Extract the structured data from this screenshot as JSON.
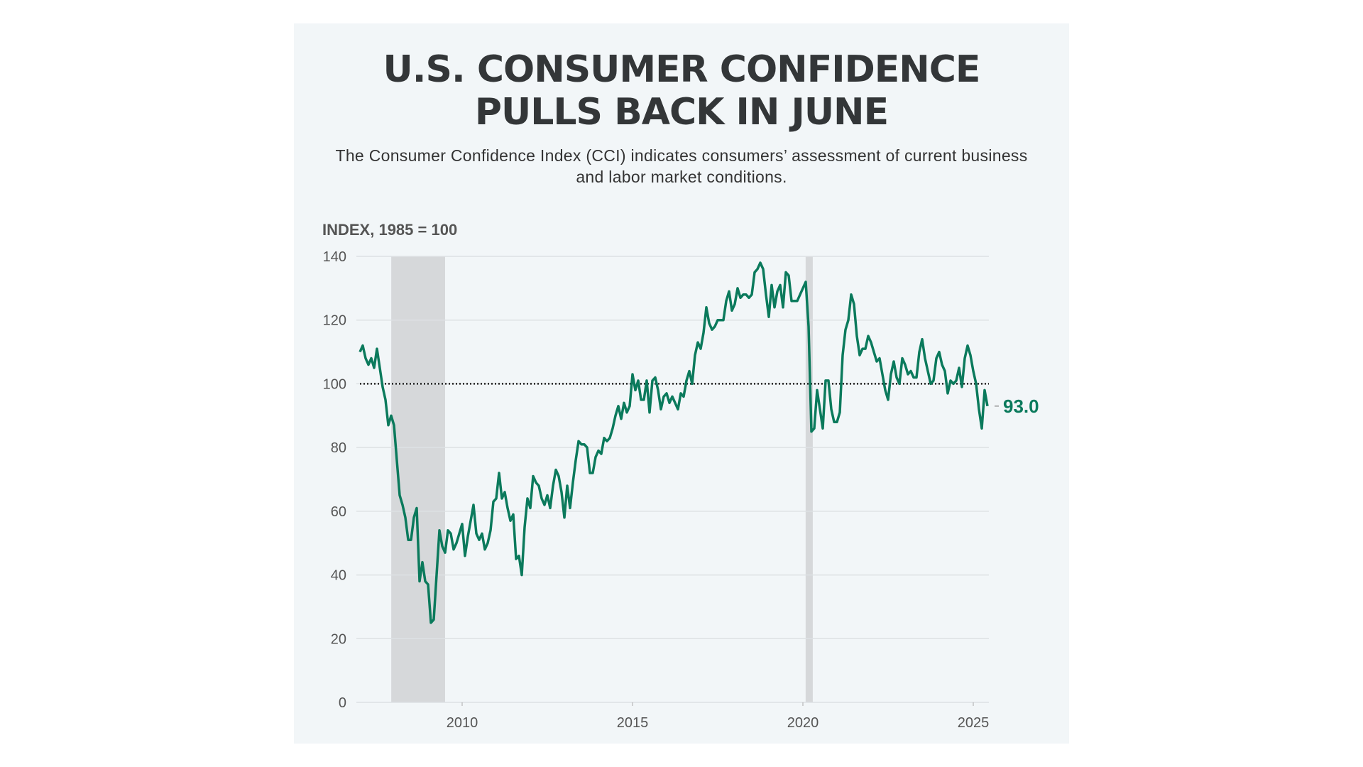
{
  "chart_data": {
    "type": "line",
    "title": "U.S. CONSUMER CONFIDENCE PULLS BACK IN JUNE",
    "title_lines": [
      "U.S. CONSUMER CONFIDENCE",
      "PULLS BACK IN JUNE"
    ],
    "subtitle": "The Consumer Confidence Index (CCI) indicates consumers’ assessment of current business and labor market conditions.",
    "ylabel": "INDEX, 1985 = 100",
    "xlabel": "",
    "xlim": [
      2007.0,
      2025.45
    ],
    "ylim": [
      0,
      140
    ],
    "yticks": [
      0,
      20,
      40,
      60,
      80,
      100,
      120,
      140
    ],
    "xticks": [
      2010,
      2015,
      2020,
      2025
    ],
    "grid": true,
    "reference_line": 100,
    "recession_bands": [
      [
        2007.92,
        2009.5
      ],
      [
        2020.08,
        2020.29
      ]
    ],
    "last_value_label": "93.0",
    "colors": {
      "line": "#0b7a5c",
      "band": "#d6d8da",
      "grid": "#dde1e4",
      "reference": "#222222"
    },
    "series": [
      {
        "start": "2007-01",
        "frequency": "monthly",
        "values": [
          110,
          112,
          108,
          106,
          108,
          105,
          111,
          105,
          99,
          95,
          87,
          90,
          87,
          76,
          65,
          62,
          58,
          51,
          51,
          58,
          61,
          38,
          44,
          38,
          37,
          25,
          26,
          40,
          54,
          49,
          47,
          54,
          53,
          48,
          50,
          53,
          56,
          46,
          52,
          57,
          62,
          53,
          51,
          53,
          48,
          50,
          54,
          63,
          64,
          72,
          64,
          66,
          61,
          57,
          59,
          45,
          46,
          40,
          55,
          64,
          61,
          71,
          69,
          68,
          64,
          62,
          65,
          61,
          68,
          73,
          71,
          66,
          58,
          68,
          61,
          69,
          76,
          82,
          81,
          81,
          80,
          72,
          72,
          77,
          79,
          78,
          83,
          82,
          83,
          86,
          90,
          93,
          89,
          94,
          91,
          93,
          103,
          98,
          101,
          95,
          95,
          101,
          91,
          101,
          102,
          98,
          92,
          96,
          97,
          94,
          96,
          94,
          92,
          97,
          96,
          101,
          104,
          100,
          109,
          113,
          111,
          116,
          124,
          119,
          117,
          118,
          120,
          120,
          120,
          126,
          129,
          123,
          125,
          130,
          127,
          128,
          128,
          127,
          128,
          135,
          136,
          138,
          136,
          128,
          121,
          131,
          124,
          129,
          131,
          124,
          135,
          134,
          126,
          126,
          126,
          128,
          130,
          132,
          118,
          85,
          86,
          98,
          92,
          86,
          101,
          101,
          92,
          88,
          88,
          91,
          109,
          117,
          120,
          128,
          125,
          115,
          109,
          111,
          111,
          115,
          113,
          110,
          107,
          108,
          103,
          98,
          95,
          103,
          107,
          102,
          100,
          108,
          106,
          103,
          104,
          102,
          102,
          110,
          114,
          108,
          104,
          100,
          101,
          108,
          110,
          106,
          104,
          97,
          101,
          100,
          101,
          105,
          99,
          108,
          112,
          109,
          104,
          100,
          92,
          86,
          98,
          93
        ]
      }
    ]
  }
}
